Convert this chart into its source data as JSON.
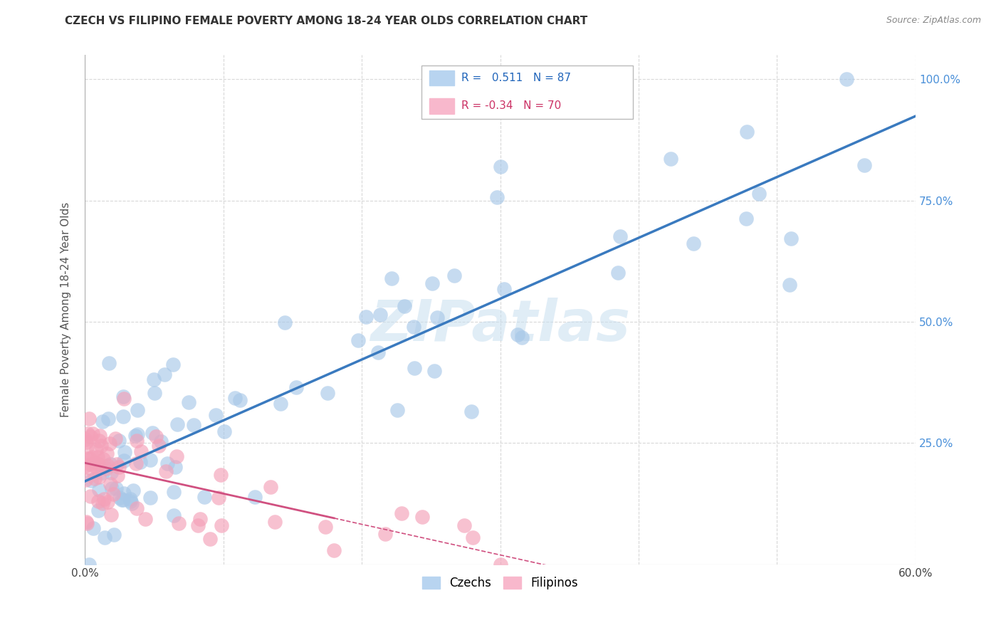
{
  "title": "CZECH VS FILIPINO FEMALE POVERTY AMONG 18-24 YEAR OLDS CORRELATION CHART",
  "source": "Source: ZipAtlas.com",
  "ylabel": "Female Poverty Among 18-24 Year Olds",
  "xlim": [
    0.0,
    0.6
  ],
  "ylim": [
    0.0,
    1.05
  ],
  "xticks": [
    0.0,
    0.1,
    0.2,
    0.3,
    0.4,
    0.5,
    0.6
  ],
  "xticklabels": [
    "0.0%",
    "",
    "",
    "",
    "",
    "",
    "60.0%"
  ],
  "yticks": [
    0.0,
    0.25,
    0.5,
    0.75,
    1.0
  ],
  "yticklabels": [
    "",
    "25.0%",
    "50.0%",
    "75.0%",
    "100.0%"
  ],
  "czech_R": 0.511,
  "czech_N": 87,
  "filipino_R": -0.34,
  "filipino_N": 70,
  "czech_color": "#a8c8e8",
  "filipino_color": "#f4a0b8",
  "czech_line_color": "#3a7abf",
  "filipino_line_color": "#d05080",
  "grid_color": "#d8d8d8",
  "watermark": "ZIPatlas",
  "background_color": "#ffffff",
  "legend_czech_color": "#b8d4f0",
  "legend_filipino_color": "#f8b8cc"
}
